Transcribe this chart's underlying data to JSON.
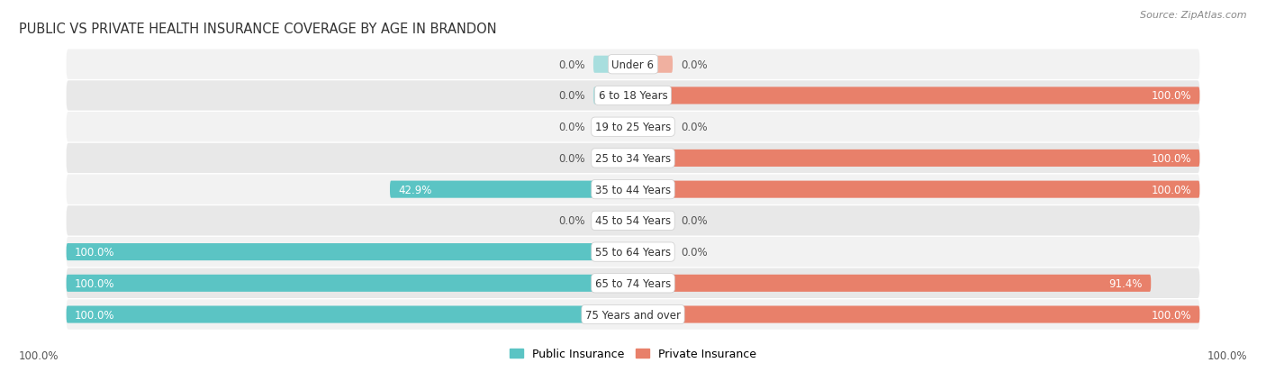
{
  "title": "PUBLIC VS PRIVATE HEALTH INSURANCE COVERAGE BY AGE IN BRANDON",
  "source": "Source: ZipAtlas.com",
  "categories": [
    "Under 6",
    "6 to 18 Years",
    "19 to 25 Years",
    "25 to 34 Years",
    "35 to 44 Years",
    "45 to 54 Years",
    "55 to 64 Years",
    "65 to 74 Years",
    "75 Years and over"
  ],
  "public_values": [
    0.0,
    0.0,
    0.0,
    0.0,
    42.9,
    0.0,
    100.0,
    100.0,
    100.0
  ],
  "private_values": [
    0.0,
    100.0,
    0.0,
    100.0,
    100.0,
    0.0,
    0.0,
    91.4,
    100.0
  ],
  "public_color": "#5bc4c4",
  "private_color": "#e8806a",
  "private_color_light": "#f0b0a0",
  "public_color_light": "#a8dede",
  "row_bg_color_odd": "#f2f2f2",
  "row_bg_color_even": "#e8e8e8",
  "title_fontsize": 10.5,
  "label_fontsize": 8.5,
  "cat_fontsize": 8.5,
  "source_fontsize": 8,
  "legend_fontsize": 9,
  "bar_height": 0.55,
  "stub_value": 7.0,
  "xlim_left": -100,
  "xlim_right": 100
}
